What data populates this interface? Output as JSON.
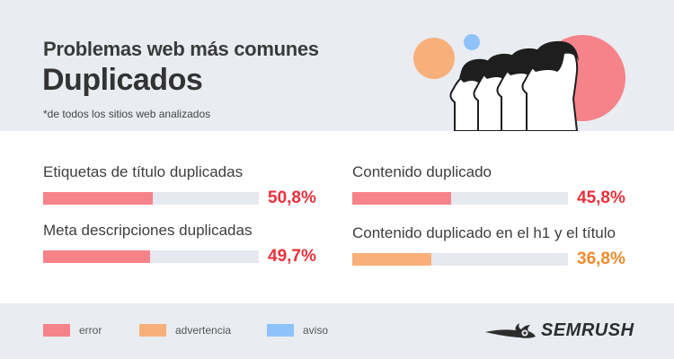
{
  "header": {
    "title": "Problemas web más comunes",
    "headline": "Duplicados",
    "footnote": "*de todos los sitios web analizados"
  },
  "chart_data": {
    "type": "bar",
    "unit": "%",
    "xlim": [
      0,
      100
    ],
    "items": [
      {
        "label": "Etiquetas de título duplicadas",
        "value": 50.8,
        "display": "50,8%",
        "severity": "error"
      },
      {
        "label": "Meta descripciones duplicadas",
        "value": 49.7,
        "display": "49,7%",
        "severity": "error"
      },
      {
        "label": "Contenido duplicado",
        "value": 45.8,
        "display": "45,8%",
        "severity": "error"
      },
      {
        "label": "Contenido duplicado en el h1 y el título",
        "value": 36.8,
        "display": "36,8%",
        "severity": "advertencia"
      }
    ]
  },
  "legend": [
    {
      "key": "error",
      "label": "error",
      "color": "#f6838a"
    },
    {
      "key": "advertencia",
      "label": "advertencia",
      "color": "#f8b07a"
    },
    {
      "key": "aviso",
      "label": "aviso",
      "color": "#8fc2fb"
    }
  ],
  "value_colors": {
    "error": "#e8313b",
    "advertencia": "#ef8a2c",
    "aviso": "#3d8ff2"
  },
  "brand": {
    "name": "SEMRUSH",
    "icon": "semrush-flame-icon"
  },
  "illustration": {
    "icon": "people-faces-illustration"
  }
}
